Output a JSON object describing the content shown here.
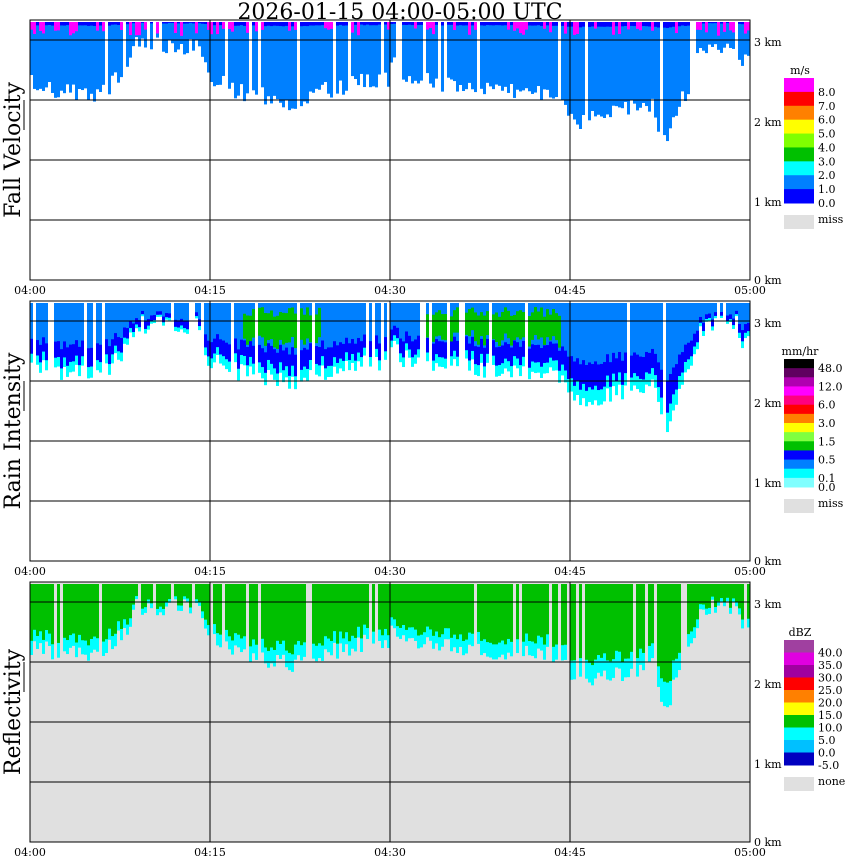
{
  "title": "2026-01-15   04:00-05:00 UTC",
  "time_ticks": [
    "04:00",
    "04:15",
    "04:30",
    "04:45",
    "05:00"
  ],
  "height_ticks": [
    "3 km",
    "2 km",
    "1 km",
    "0 km"
  ],
  "chart_data": [
    {
      "type": "heatmap",
      "ylabel": "Fall Velocity",
      "xlabel": "",
      "xlim": [
        "04:00",
        "05:00"
      ],
      "ylim_km": [
        0,
        3.3
      ],
      "legend": {
        "unit": "m/s",
        "colors": [
          "#ff00ff",
          "#ff0000",
          "#ff8000",
          "#ffff00",
          "#80ff00",
          "#00c000",
          "#00ffff",
          "#0080ff",
          "#0000ff"
        ],
        "labels": [
          "8.0",
          "7.0",
          "6.0",
          "5.0",
          "4.0",
          "3.0",
          "2.0",
          "1.0",
          "0.0"
        ],
        "missing_label": "miss",
        "missing_color": "#e0e0e0"
      }
    },
    {
      "type": "heatmap",
      "ylabel": "Rain Intensity",
      "xlabel": "",
      "xlim": [
        "04:00",
        "05:00"
      ],
      "ylim_km": [
        0,
        3.3
      ],
      "legend": {
        "unit": "mm/hr",
        "colors": [
          "#000000",
          "#600060",
          "#b000b0",
          "#ff00ff",
          "#ff0080",
          "#ff0000",
          "#ff8000",
          "#ffff00",
          "#80ff40",
          "#00c000",
          "#0000ff",
          "#0080ff",
          "#00ffff",
          "#80ffff"
        ],
        "labels": [
          "48.0",
          "12.0",
          "6.0",
          "3.0",
          "1.5",
          "0.5",
          "0.1",
          "0.0"
        ],
        "missing_label": "miss",
        "missing_color": "#e0e0e0"
      }
    },
    {
      "type": "heatmap",
      "ylabel": "Reflectivity",
      "xlabel": "",
      "xlim": [
        "04:00",
        "05:00"
      ],
      "ylim_km": [
        0,
        3.3
      ],
      "legend": {
        "unit": "dBZ",
        "colors": [
          "#a040a0",
          "#e000e0",
          "#a000a0",
          "#ff0000",
          "#ff8000",
          "#ffff00",
          "#00c000",
          "#00ffff",
          "#00c0ff",
          "#0000c0"
        ],
        "labels": [
          "40.0",
          "35.0",
          "30.0",
          "25.0",
          "20.0",
          "15.0",
          "10.0",
          "5.0",
          "0.0",
          "-5.0"
        ],
        "missing_label": "none",
        "missing_color": "#e0e0e0"
      }
    }
  ]
}
